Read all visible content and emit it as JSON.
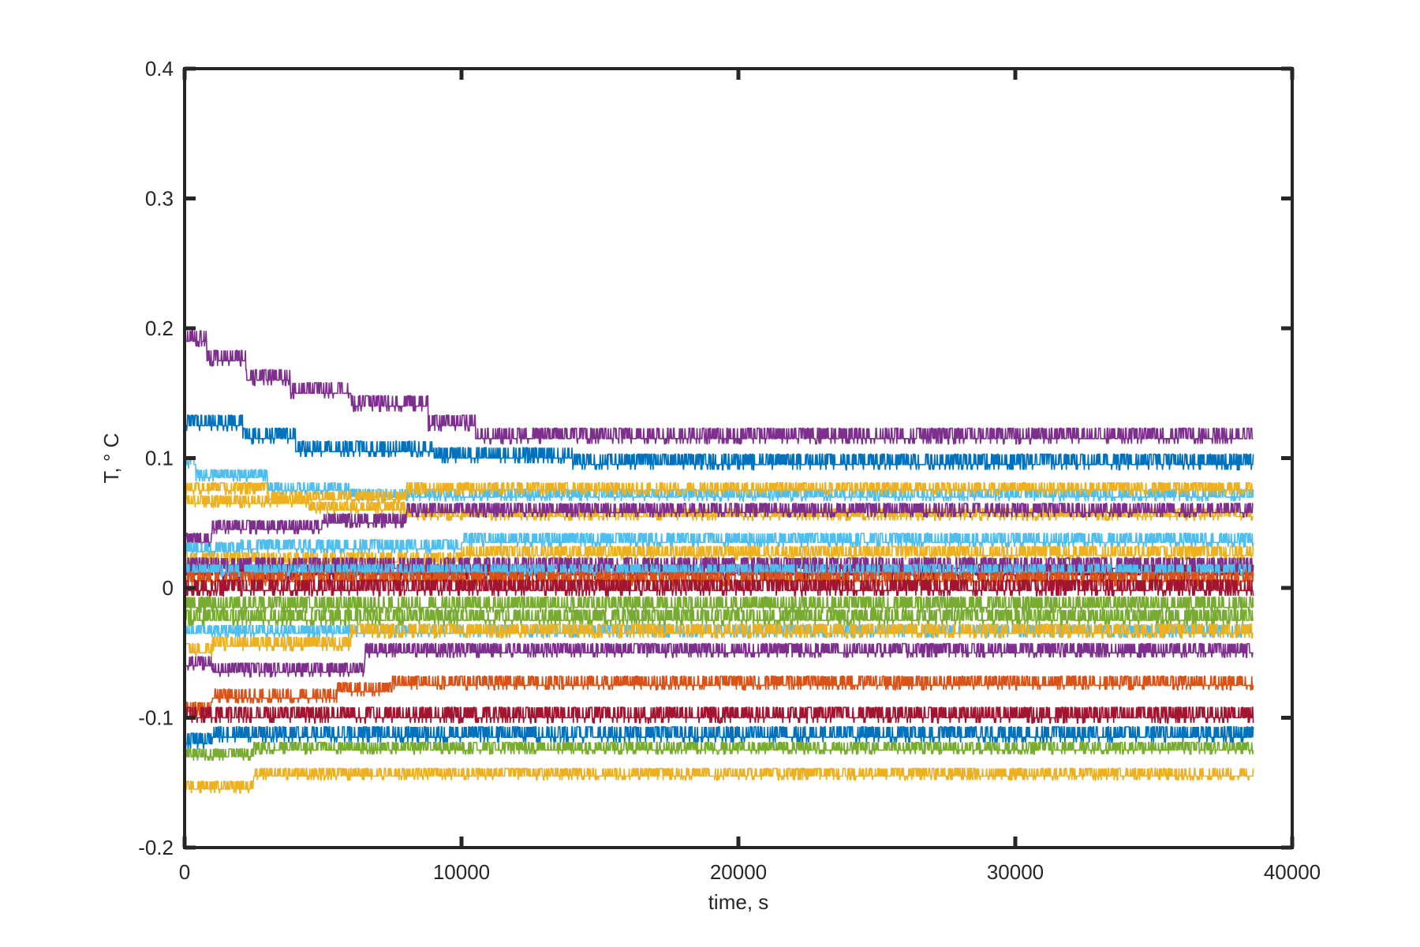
{
  "chart_data": {
    "type": "line",
    "title": "",
    "xlabel": "time, s",
    "ylabel": "T, ° C",
    "xlim": [
      0,
      40000
    ],
    "ylim": [
      -0.2,
      0.4
    ],
    "x_ticks": [
      0,
      10000,
      20000,
      30000,
      40000
    ],
    "x_tick_labels": [
      "0",
      "10000",
      "20000",
      "30000",
      "40000"
    ],
    "y_ticks": [
      -0.2,
      -0.1,
      0,
      0.1,
      0.2,
      0.3,
      0.4
    ],
    "y_tick_labels": [
      "-0.2",
      "-0.1",
      "0",
      "0.1",
      "0.2",
      "0.3",
      "0.4"
    ],
    "grid": false,
    "legend": "none",
    "x_end": 38600,
    "series_colors": [
      "#7E2F8E",
      "#0072BD",
      "#4DBEEE",
      "#EDB120",
      "#D95319",
      "#A2142F",
      "#77AC30"
    ],
    "series": [
      {
        "color": "#7E2F8E",
        "level_breakpoints": [
          [
            0,
            0.19
          ],
          [
            800,
            0.175
          ],
          [
            2200,
            0.16
          ],
          [
            3800,
            0.15
          ],
          [
            6000,
            0.14
          ],
          [
            8800,
            0.125
          ],
          [
            10500,
            0.115
          ],
          [
            38600,
            0.115
          ]
        ],
        "noise": 0.008
      },
      {
        "color": "#0072BD",
        "level_breakpoints": [
          [
            0,
            0.125
          ],
          [
            2100,
            0.115
          ],
          [
            4000,
            0.105
          ],
          [
            9000,
            0.1
          ],
          [
            14000,
            0.095
          ],
          [
            38600,
            0.095
          ]
        ],
        "noise": 0.008
      },
      {
        "color": "#4DBEEE",
        "level_breakpoints": [
          [
            0,
            0.095
          ],
          [
            400,
            0.085
          ],
          [
            3000,
            0.075
          ],
          [
            6000,
            0.07
          ],
          [
            38600,
            0.068
          ]
        ],
        "noise": 0.006
      },
      {
        "color": "#EDB120",
        "level_breakpoints": [
          [
            0,
            0.075
          ],
          [
            3000,
            0.068
          ],
          [
            8000,
            0.075
          ],
          [
            38600,
            0.075
          ]
        ],
        "noise": 0.006
      },
      {
        "color": "#EDB120",
        "level_breakpoints": [
          [
            0,
            0.065
          ],
          [
            4500,
            0.06
          ],
          [
            8000,
            0.055
          ],
          [
            38600,
            0.055
          ]
        ],
        "noise": 0.006
      },
      {
        "color": "#7E2F8E",
        "level_breakpoints": [
          [
            0,
            0.035
          ],
          [
            1000,
            0.045
          ],
          [
            5000,
            0.05
          ],
          [
            8000,
            0.058
          ],
          [
            38600,
            0.058
          ]
        ],
        "noise": 0.007
      },
      {
        "color": "#4DBEEE",
        "level_breakpoints": [
          [
            0,
            0.028
          ],
          [
            2000,
            0.03
          ],
          [
            10000,
            0.035
          ],
          [
            38600,
            0.035
          ]
        ],
        "noise": 0.007
      },
      {
        "color": "#EDB120",
        "level_breakpoints": [
          [
            0,
            0.02
          ],
          [
            10000,
            0.025
          ],
          [
            38600,
            0.028
          ]
        ],
        "noise": 0.007
      },
      {
        "color": "#A2142F",
        "level_breakpoints": [
          [
            0,
            0.01
          ],
          [
            38600,
            0.018
          ]
        ],
        "noise": 0.008
      },
      {
        "color": "#7E2F8E",
        "level_breakpoints": [
          [
            0,
            0.015
          ],
          [
            38600,
            0.015
          ]
        ],
        "noise": 0.008
      },
      {
        "color": "#4DBEEE",
        "level_breakpoints": [
          [
            0,
            0.012
          ],
          [
            38600,
            0.01
          ]
        ],
        "noise": 0.006
      },
      {
        "color": "#D95319",
        "level_breakpoints": [
          [
            0,
            0.005
          ],
          [
            38600,
            -0.012
          ]
        ],
        "noise": 0.007
      },
      {
        "color": "#A2142F",
        "level_breakpoints": [
          [
            0,
            -0.002
          ],
          [
            38600,
            -0.005
          ]
        ],
        "noise": 0.008
      },
      {
        "color": "#77AC30",
        "level_breakpoints": [
          [
            0,
            -0.015
          ],
          [
            38600,
            -0.02
          ]
        ],
        "noise": 0.008
      },
      {
        "color": "#77AC30",
        "level_breakpoints": [
          [
            0,
            -0.025
          ],
          [
            38600,
            -0.028
          ]
        ],
        "noise": 0.008
      },
      {
        "color": "#4DBEEE",
        "level_breakpoints": [
          [
            0,
            -0.035
          ],
          [
            5500,
            -0.035
          ],
          [
            38600,
            -0.035
          ]
        ],
        "noise": 0.006
      },
      {
        "color": "#EDB120",
        "level_breakpoints": [
          [
            0,
            -0.05
          ],
          [
            1000,
            -0.045
          ],
          [
            6000,
            -0.035
          ],
          [
            38600,
            -0.035
          ]
        ],
        "noise": 0.007
      },
      {
        "color": "#7E2F8E",
        "level_breakpoints": [
          [
            0,
            -0.06
          ],
          [
            1000,
            -0.065
          ],
          [
            6500,
            -0.05
          ],
          [
            38600,
            -0.045
          ]
        ],
        "noise": 0.007
      },
      {
        "color": "#D95319",
        "level_breakpoints": [
          [
            0,
            -0.095
          ],
          [
            1000,
            -0.085
          ],
          [
            5500,
            -0.08
          ],
          [
            7500,
            -0.075
          ],
          [
            38600,
            -0.07
          ]
        ],
        "noise": 0.007
      },
      {
        "color": "#A2142F",
        "level_breakpoints": [
          [
            0,
            -0.1
          ],
          [
            6500,
            -0.1
          ],
          [
            38600,
            -0.095
          ]
        ],
        "noise": 0.008
      },
      {
        "color": "#0072BD",
        "level_breakpoints": [
          [
            0,
            -0.12
          ],
          [
            1000,
            -0.115
          ],
          [
            38600,
            -0.105
          ]
        ],
        "noise": 0.008
      },
      {
        "color": "#77AC30",
        "level_breakpoints": [
          [
            0,
            -0.13
          ],
          [
            2500,
            -0.125
          ],
          [
            38600,
            -0.125
          ]
        ],
        "noise": 0.006
      },
      {
        "color": "#EDB120",
        "level_breakpoints": [
          [
            0,
            -0.155
          ],
          [
            2500,
            -0.145
          ],
          [
            38600,
            -0.145
          ]
        ],
        "noise": 0.006
      }
    ]
  }
}
